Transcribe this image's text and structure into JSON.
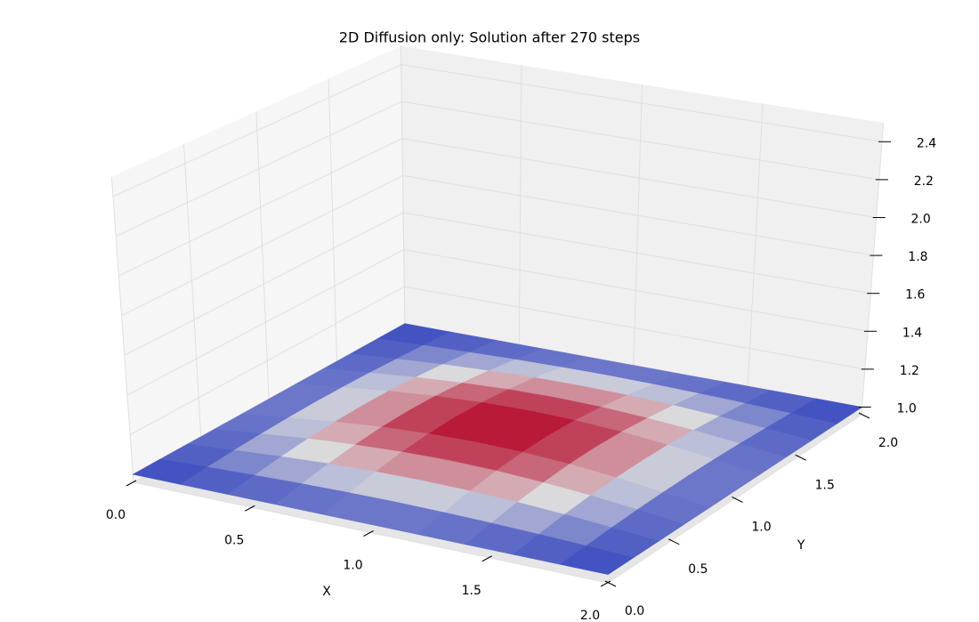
{
  "chart_data": {
    "type": "surface",
    "title": "2D Diffusion only: Solution after 270 steps",
    "xlabel": "X",
    "ylabel": "Y",
    "x": [
      0,
      0.2,
      0.4,
      0.6,
      0.8,
      1.0,
      1.2,
      1.4,
      1.6,
      1.8,
      2.0
    ],
    "y": [
      0,
      0.2,
      0.4,
      0.6,
      0.8,
      1.0,
      1.2,
      1.4,
      1.6,
      1.8,
      2.0
    ],
    "z": [
      [
        1,
        1,
        1,
        1,
        1,
        1,
        1,
        1,
        1,
        1,
        1
      ],
      [
        1,
        1.01,
        1.018,
        1.025,
        1.029,
        1.031,
        1.029,
        1.025,
        1.018,
        1.01,
        1
      ],
      [
        1,
        1.018,
        1.035,
        1.048,
        1.056,
        1.059,
        1.056,
        1.048,
        1.035,
        1.018,
        1
      ],
      [
        1,
        1.025,
        1.048,
        1.065,
        1.077,
        1.081,
        1.077,
        1.065,
        1.048,
        1.025,
        1
      ],
      [
        1,
        1.029,
        1.056,
        1.077,
        1.09,
        1.095,
        1.09,
        1.077,
        1.056,
        1.029,
        1
      ],
      [
        1,
        1.031,
        1.059,
        1.081,
        1.095,
        1.1,
        1.095,
        1.081,
        1.059,
        1.031,
        1
      ],
      [
        1,
        1.029,
        1.056,
        1.077,
        1.09,
        1.095,
        1.09,
        1.077,
        1.056,
        1.029,
        1
      ],
      [
        1,
        1.025,
        1.048,
        1.065,
        1.077,
        1.081,
        1.077,
        1.065,
        1.048,
        1.025,
        1
      ],
      [
        1,
        1.018,
        1.035,
        1.048,
        1.056,
        1.059,
        1.056,
        1.048,
        1.035,
        1.018,
        1
      ],
      [
        1,
        1.01,
        1.018,
        1.025,
        1.029,
        1.031,
        1.029,
        1.025,
        1.018,
        1.01,
        1
      ],
      [
        1,
        1,
        1,
        1,
        1,
        1,
        1,
        1,
        1,
        1,
        1
      ]
    ],
    "xlim": [
      0,
      2
    ],
    "ylim": [
      0,
      2
    ],
    "zlim": [
      0.96,
      2.5
    ],
    "xticks": [
      {
        "value": 0,
        "label": "0.0"
      },
      0.5,
      {
        "value": 1,
        "label": "1.0"
      },
      1.5,
      {
        "value": 2,
        "label": "2.0"
      }
    ],
    "yticks": [
      {
        "value": 0,
        "label": "0.0"
      },
      0.5,
      {
        "value": 1,
        "label": "1.0"
      },
      1.5,
      {
        "value": 2,
        "label": "2.0"
      }
    ],
    "zticks": [
      {
        "value": 1,
        "label": "1.0"
      },
      1.2,
      1.4,
      1.6,
      1.8,
      {
        "value": 2,
        "label": "2.0"
      },
      2.2,
      2.4
    ],
    "colormap": [
      "#3b4cc0",
      "#dddddd",
      "#b40426"
    ],
    "grid": true
  }
}
